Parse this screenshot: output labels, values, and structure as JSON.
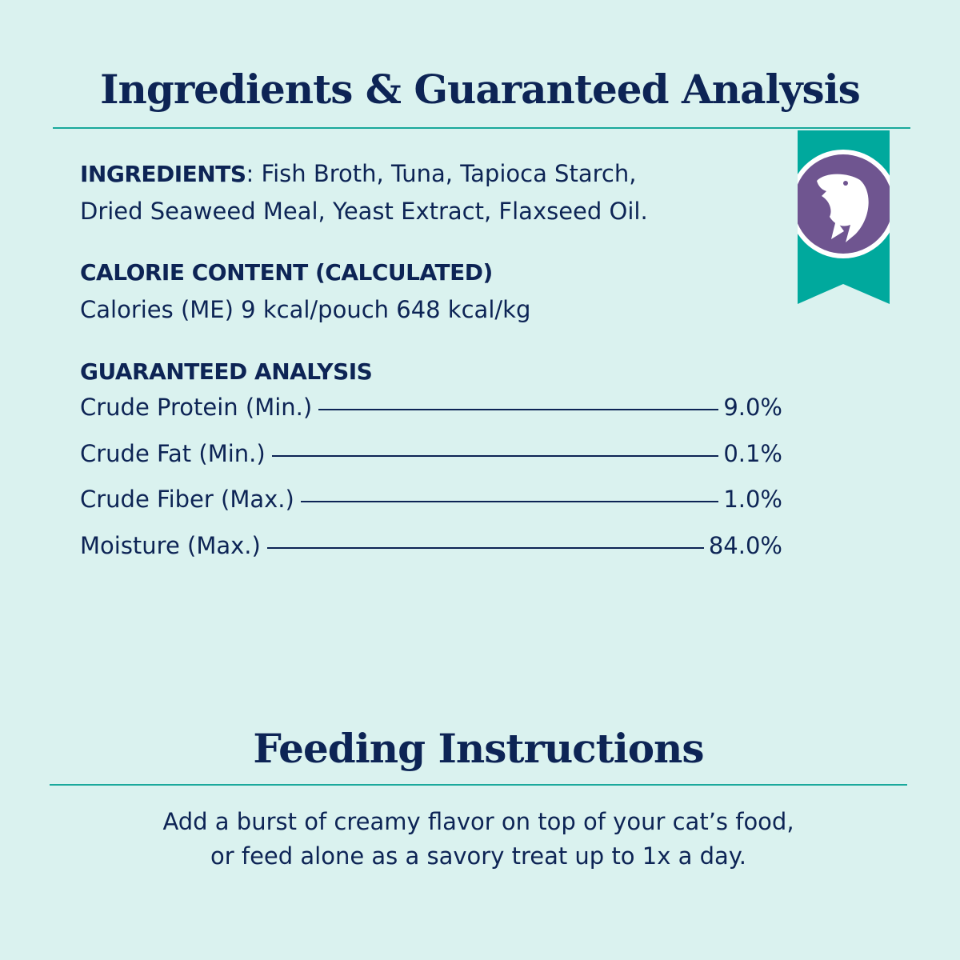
{
  "heading": "Ingredients & Guaranteed Analysis",
  "ingredients": {
    "label": "INGREDIENTS",
    "line1": ": Fish Broth, Tuna, Tapioca Starch,",
    "line2": "Dried Seaweed Meal, Yeast Extract, Flaxseed Oil."
  },
  "calorie": {
    "label": "CALORIE CONTENT (CALCULATED)",
    "value": "Calories (ME) 9 kcal/pouch  648 kcal/kg"
  },
  "analysis": {
    "label": "GUARANTEED ANALYSIS",
    "rows": [
      {
        "name": "Crude Protein (Min.)",
        "value": "9.0%"
      },
      {
        "name": "Crude Fat (Min.)",
        "value": "0.1%"
      },
      {
        "name": "Crude Fiber (Max.)",
        "value": "1.0%"
      },
      {
        "name": "Moisture (Max.)",
        "value": "84.0%"
      }
    ]
  },
  "badge": {
    "icon": "fish-icon",
    "ribbon_color": "#00a99d",
    "circle_color": "#6f5590"
  },
  "feeding": {
    "heading": "Feeding Instructions",
    "line1": "Add a burst of creamy flavor on top of your cat’s food,",
    "line2": "or feed alone as a savory treat up to 1x a day."
  },
  "colors": {
    "background": "#daf2ef",
    "text": "#0d2455",
    "rule": "#1aa99c"
  }
}
